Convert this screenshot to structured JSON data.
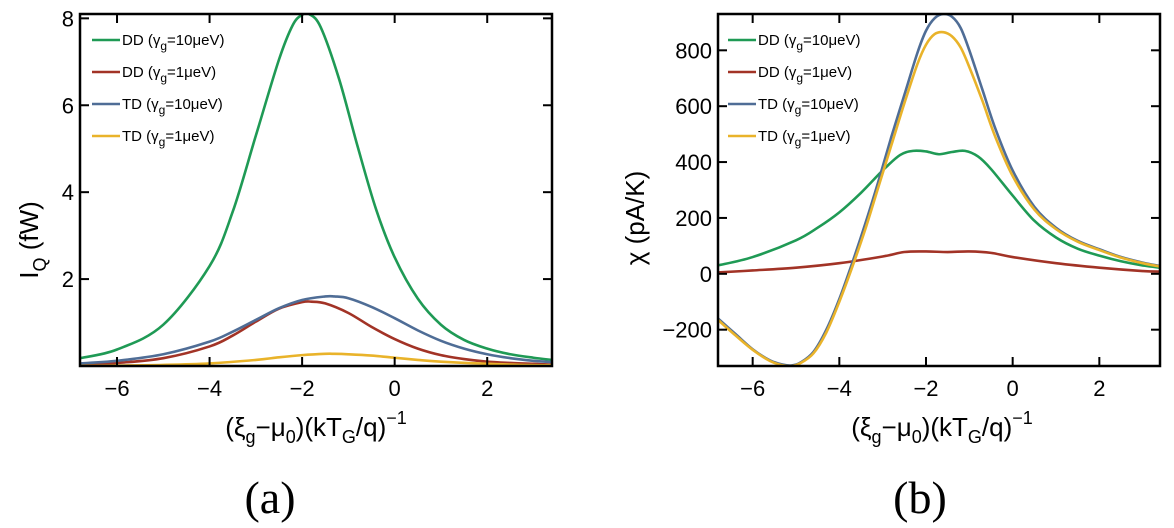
{
  "colors": {
    "DD_10": "#1f9a55",
    "DD_1": "#a23326",
    "TD_10": "#4f6d96",
    "TD_1": "#e9b32a"
  },
  "chart_data": [
    {
      "id": "a",
      "type": "line",
      "caption": "(a)",
      "ylabel": {
        "main": "I",
        "sub": "Q",
        "unit": " (fW)"
      },
      "xlabel": {
        "p1": "(ξ",
        "s1": "g",
        "p2": "−μ",
        "s2": "0",
        "p3": ")(kT",
        "s3": "G",
        "p4": "/q)",
        "sup": "−1"
      },
      "xlim": [
        -6.8,
        3.4
      ],
      "ylim": [
        0,
        8.1
      ],
      "xticks": [
        -6,
        -4,
        -2,
        0,
        2
      ],
      "xtick_labels": [
        "−6",
        "−4",
        "−2",
        "0",
        "2"
      ],
      "yticks": [
        2,
        4,
        6,
        8
      ],
      "ytick_labels": [
        "2",
        "4",
        "6",
        "8"
      ],
      "legend": [
        {
          "key": "DD_10",
          "prefix": "DD (γ",
          "sub": "g",
          "suffix": "=10μeV)"
        },
        {
          "key": "DD_1",
          "prefix": "DD (γ",
          "sub": "g",
          "suffix": "=1μeV)"
        },
        {
          "key": "TD_10",
          "prefix": "TD (γ",
          "sub": "g",
          "suffix": "=10μeV)"
        },
        {
          "key": "TD_1",
          "prefix": "TD (γ",
          "sub": "g",
          "suffix": "=1μeV)"
        }
      ],
      "series": [
        {
          "name": "DD (γg=10μeV)",
          "key": "DD_10",
          "x": [
            -6.8,
            -6,
            -5,
            -4,
            -3.5,
            -3,
            -2.5,
            -2.2,
            -2,
            -1.85,
            -1.6,
            -1.2,
            -0.8,
            -0.4,
            0,
            0.5,
            1,
            1.5,
            2,
            2.5,
            3,
            3.4
          ],
          "y": [
            0.18,
            0.38,
            0.95,
            2.3,
            3.55,
            5.3,
            7.05,
            7.85,
            8.08,
            8.1,
            7.8,
            6.6,
            5.05,
            3.6,
            2.5,
            1.55,
            0.95,
            0.6,
            0.4,
            0.27,
            0.19,
            0.14
          ]
        },
        {
          "name": "DD (γg=1μeV)",
          "key": "DD_1",
          "x": [
            -6.8,
            -6,
            -5,
            -4,
            -3.5,
            -3,
            -2.5,
            -2,
            -1.8,
            -1.5,
            -1,
            -0.5,
            0,
            0.5,
            1,
            1.5,
            2,
            2.5,
            3,
            3.4
          ],
          "y": [
            0.03,
            0.07,
            0.18,
            0.45,
            0.7,
            1.02,
            1.32,
            1.47,
            1.48,
            1.44,
            1.22,
            0.9,
            0.62,
            0.4,
            0.25,
            0.16,
            0.1,
            0.07,
            0.05,
            0.03
          ]
        },
        {
          "name": "TD (γg=10μeV)",
          "key": "TD_10",
          "x": [
            -6.8,
            -6,
            -5,
            -4,
            -3.5,
            -3,
            -2.5,
            -2,
            -1.5,
            -1.3,
            -1,
            -0.5,
            0,
            0.5,
            1,
            1.5,
            2,
            2.5,
            3,
            3.4
          ],
          "y": [
            0.06,
            0.12,
            0.27,
            0.56,
            0.79,
            1.06,
            1.33,
            1.52,
            1.6,
            1.6,
            1.56,
            1.36,
            1.1,
            0.82,
            0.58,
            0.4,
            0.27,
            0.18,
            0.12,
            0.09
          ]
        },
        {
          "name": "TD (γg=1μeV)",
          "key": "TD_1",
          "x": [
            -6.8,
            -6,
            -5,
            -4,
            -3,
            -2.5,
            -2,
            -1.5,
            -1.3,
            -1,
            -0.5,
            0,
            0.5,
            1,
            2,
            3,
            3.4
          ],
          "y": [
            0.005,
            0.01,
            0.025,
            0.06,
            0.14,
            0.2,
            0.25,
            0.28,
            0.28,
            0.27,
            0.24,
            0.19,
            0.14,
            0.1,
            0.05,
            0.02,
            0.015
          ]
        }
      ]
    },
    {
      "id": "b",
      "type": "line",
      "caption": "(b)",
      "ylabel": {
        "main": "χ (pA/K)",
        "sub": "",
        "unit": ""
      },
      "xlabel": {
        "p1": "(ξ",
        "s1": "g",
        "p2": "−μ",
        "s2": "0",
        "p3": ")(kT",
        "s3": "G",
        "p4": "/q)",
        "sup": "−1"
      },
      "xlim": [
        -6.8,
        3.4
      ],
      "ylim": [
        -330,
        930
      ],
      "xticks": [
        -6,
        -4,
        -2,
        0,
        2
      ],
      "xtick_labels": [
        "−6",
        "−4",
        "−2",
        "0",
        "2"
      ],
      "yticks": [
        -200,
        0,
        200,
        400,
        600,
        800
      ],
      "ytick_labels": [
        "−200",
        "0",
        "200",
        "400",
        "600",
        "800"
      ],
      "legend": [
        {
          "key": "DD_10",
          "prefix": "DD (γ",
          "sub": "g",
          "suffix": "=10μeV)"
        },
        {
          "key": "DD_1",
          "prefix": "DD (γ",
          "sub": "g",
          "suffix": "=1μeV)"
        },
        {
          "key": "TD_10",
          "prefix": "TD (γ",
          "sub": "g",
          "suffix": "=10μeV)"
        },
        {
          "key": "TD_1",
          "prefix": "TD (γ",
          "sub": "g",
          "suffix": "=1μeV)"
        }
      ],
      "series": [
        {
          "name": "DD (γg=10μeV)",
          "key": "DD_10",
          "x": [
            -6.8,
            -6,
            -5,
            -4.5,
            -4,
            -3.5,
            -3,
            -2.6,
            -2.3,
            -2,
            -1.7,
            -1.4,
            -1.1,
            -0.8,
            -0.5,
            0,
            0.5,
            1,
            1.5,
            2,
            2.5,
            3,
            3.4
          ],
          "y": [
            30,
            60,
            120,
            165,
            220,
            290,
            370,
            425,
            440,
            438,
            428,
            436,
            440,
            420,
            375,
            280,
            190,
            130,
            90,
            65,
            45,
            30,
            22
          ]
        },
        {
          "name": "DD (γg=1μeV)",
          "key": "DD_1",
          "x": [
            -6.8,
            -6,
            -5,
            -4,
            -3,
            -2.5,
            -2,
            -1.5,
            -1,
            -0.5,
            0,
            1,
            2,
            3,
            3.4
          ],
          "y": [
            5,
            12,
            22,
            38,
            62,
            78,
            80,
            78,
            80,
            75,
            60,
            38,
            22,
            10,
            8
          ]
        },
        {
          "name": "TD (γg=10μeV)",
          "key": "TD_10",
          "x": [
            -6.8,
            -6.4,
            -6,
            -5.6,
            -5.3,
            -5.1,
            -4.9,
            -4.6,
            -4.3,
            -4,
            -3.7,
            -3.4,
            -3.1,
            -2.8,
            -2.5,
            -2.2,
            -2,
            -1.8,
            -1.6,
            -1.4,
            -1.2,
            -1,
            -0.7,
            -0.4,
            0,
            0.5,
            1,
            1.5,
            2,
            2.5,
            3,
            3.4
          ],
          "y": [
            -160,
            -215,
            -270,
            -310,
            -325,
            -328,
            -318,
            -280,
            -200,
            -90,
            40,
            180,
            330,
            490,
            640,
            790,
            870,
            915,
            930,
            920,
            880,
            800,
            660,
            520,
            370,
            240,
            165,
            118,
            88,
            60,
            40,
            28
          ]
        },
        {
          "name": "TD (γg=1μeV)",
          "key": "TD_1",
          "x": [
            -6.8,
            -6.4,
            -6,
            -5.6,
            -5.3,
            -5.1,
            -4.9,
            -4.6,
            -4.3,
            -4,
            -3.7,
            -3.4,
            -3.1,
            -2.8,
            -2.5,
            -2.2,
            -2,
            -1.8,
            -1.6,
            -1.4,
            -1.2,
            -1,
            -0.7,
            -0.4,
            0,
            0.5,
            1,
            1.5,
            2,
            2.5,
            3,
            3.4
          ],
          "y": [
            -165,
            -220,
            -272,
            -312,
            -328,
            -330,
            -320,
            -285,
            -210,
            -100,
            25,
            160,
            310,
            460,
            610,
            750,
            820,
            858,
            865,
            850,
            810,
            740,
            620,
            490,
            350,
            230,
            160,
            115,
            85,
            58,
            38,
            26
          ]
        }
      ]
    }
  ]
}
